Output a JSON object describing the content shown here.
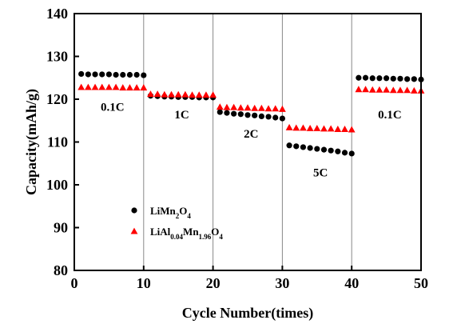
{
  "chart_data": {
    "type": "scatter",
    "xlabel": "Cycle Number(times)",
    "ylabel": "Capacity(mAh/g)",
    "xlim": [
      0,
      50
    ],
    "ylim": [
      80,
      140
    ],
    "xticks": [
      0,
      10,
      20,
      30,
      40,
      50
    ],
    "yticks": [
      80,
      90,
      100,
      110,
      120,
      130,
      140
    ],
    "vlines": [
      10,
      20,
      30,
      40
    ],
    "annotations": [
      {
        "text": "0.1C",
        "x": 5.5,
        "y": 117.3
      },
      {
        "text": "1C",
        "x": 15.5,
        "y": 115.5
      },
      {
        "text": "2C",
        "x": 25.5,
        "y": 111
      },
      {
        "text": "5C",
        "x": 35.5,
        "y": 102
      },
      {
        "text": "0.1C",
        "x": 45.5,
        "y": 115.5
      }
    ],
    "legend": {
      "position": "lower-left",
      "entries": [
        {
          "parts": [
            {
              "t": "LiMn"
            },
            {
              "t": "2",
              "sub": true
            },
            {
              "t": "O"
            },
            {
              "t": "4",
              "sub": true
            }
          ],
          "marker": "circle",
          "color": "#000000"
        },
        {
          "parts": [
            {
              "t": "LiAl"
            },
            {
              "t": "0.04",
              "sub": true
            },
            {
              "t": "Mn"
            },
            {
              "t": "1.96",
              "sub": true
            },
            {
              "t": "O"
            },
            {
              "t": "4",
              "sub": true
            }
          ],
          "marker": "triangle",
          "color": "#ff0000"
        }
      ]
    },
    "series": [
      {
        "name": "LiMn2O4",
        "marker": "circle",
        "color": "#000000",
        "x": [
          1,
          2,
          3,
          4,
          5,
          6,
          7,
          8,
          9,
          10,
          11,
          12,
          13,
          14,
          15,
          16,
          17,
          18,
          19,
          20,
          21,
          22,
          23,
          24,
          25,
          26,
          27,
          28,
          29,
          30,
          31,
          32,
          33,
          34,
          35,
          36,
          37,
          38,
          39,
          40,
          41,
          42,
          43,
          44,
          45,
          46,
          47,
          48,
          49,
          50
        ],
        "y": [
          125.9,
          125.8,
          125.8,
          125.8,
          125.8,
          125.7,
          125.7,
          125.7,
          125.7,
          125.6,
          120.8,
          120.7,
          120.6,
          120.6,
          120.5,
          120.5,
          120.5,
          120.4,
          120.4,
          120.4,
          117.0,
          116.8,
          116.6,
          116.5,
          116.3,
          116.2,
          116.0,
          115.9,
          115.7,
          115.5,
          109.2,
          109.0,
          108.8,
          108.6,
          108.4,
          108.2,
          108.0,
          107.8,
          107.5,
          107.3,
          125.0,
          125.0,
          124.9,
          124.9,
          124.9,
          124.8,
          124.8,
          124.7,
          124.7,
          124.6
        ]
      },
      {
        "name": "LiAl0.04Mn1.96O4",
        "marker": "triangle",
        "color": "#ff0000",
        "x": [
          1,
          2,
          3,
          4,
          5,
          6,
          7,
          8,
          9,
          10,
          11,
          12,
          13,
          14,
          15,
          16,
          17,
          18,
          19,
          20,
          21,
          22,
          23,
          24,
          25,
          26,
          27,
          28,
          29,
          30,
          31,
          32,
          33,
          34,
          35,
          36,
          37,
          38,
          39,
          40,
          41,
          42,
          43,
          44,
          45,
          46,
          47,
          48,
          49,
          50
        ],
        "y": [
          122.8,
          122.8,
          122.8,
          122.8,
          122.8,
          122.8,
          122.7,
          122.7,
          122.7,
          122.7,
          121.2,
          121.2,
          121.1,
          121.1,
          121.1,
          121.1,
          121.0,
          121.0,
          121.0,
          121.0,
          118.2,
          118.1,
          118.1,
          118.0,
          118.0,
          117.9,
          117.9,
          117.8,
          117.8,
          117.7,
          113.4,
          113.3,
          113.3,
          113.2,
          113.2,
          113.1,
          113.1,
          113.0,
          113.0,
          112.9,
          122.3,
          122.3,
          122.2,
          122.2,
          122.2,
          122.1,
          122.1,
          122.1,
          122.0,
          122.0
        ]
      }
    ]
  }
}
